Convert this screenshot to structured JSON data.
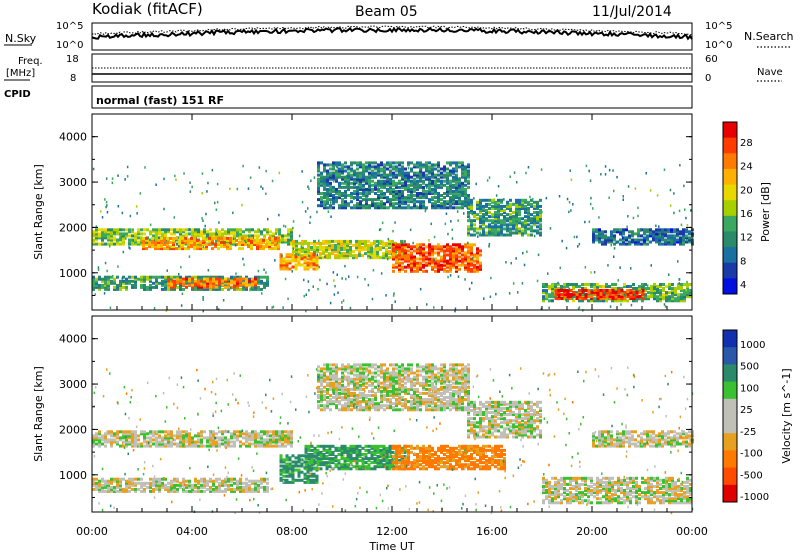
{
  "header": {
    "station": "Kodiak (fitACF)",
    "beam": "Beam 05",
    "date": "11/Jul/2014"
  },
  "noise_panel": {
    "left_label": "N.Sky",
    "right_label": "N.Search",
    "tick_top": "10^5",
    "tick_bottom": "10^0"
  },
  "freq_panel": {
    "left_label_1": "Freq.",
    "left_label_2": "[MHz]",
    "right_label": "Nave",
    "left_ticks": [
      "18",
      "8"
    ],
    "right_ticks": [
      "60",
      "0"
    ]
  },
  "cpid_panel": {
    "label": "CPID",
    "program": "normal (fast) 151 RF"
  },
  "power_colorbar": {
    "label": "Power [dB]",
    "ticks": [
      "28",
      "24",
      "20",
      "16",
      "12",
      "8",
      "4"
    ],
    "colors": [
      "#e60000",
      "#ff3b00",
      "#ff7a00",
      "#ffb000",
      "#e8d800",
      "#a8d000",
      "#3aa860",
      "#2a8a6a",
      "#1a70a0",
      "#1a3aa8",
      "#0010e0"
    ]
  },
  "velocity_colorbar": {
    "label": "Velocity [m s^-1]",
    "ticks": [
      "1000",
      "500",
      "100",
      "25",
      "-25",
      "-100",
      "-500",
      "-1000"
    ],
    "colors": [
      "#1030b0",
      "#2a58a8",
      "#2a8a6a",
      "#3ac030",
      "#c0c0b8",
      "#c0c0b8",
      "#e8a020",
      "#ff7800",
      "#ff4a00",
      "#e00000"
    ]
  },
  "x_axis": {
    "label": "Time UT",
    "ticks": [
      "00:00",
      "04:00",
      "08:00",
      "12:00",
      "16:00",
      "20:00",
      "00:00"
    ]
  },
  "chart_data": [
    {
      "type": "heatmap",
      "title": "Power",
      "ylabel": "Slant Range [km]",
      "xlabel": "Time UT",
      "y_ticks": [
        "1000",
        "2000",
        "3000",
        "4000"
      ],
      "ylim": [
        180,
        4500
      ],
      "xlim_hours": [
        0,
        24
      ],
      "color_scale": "Power [dB]",
      "range_db": [
        0,
        30
      ],
      "bands": [
        {
          "t0": 0.0,
          "t1": 8.0,
          "r0": 1600,
          "r1": 1950,
          "level": 14
        },
        {
          "t0": 2.0,
          "t1": 7.5,
          "r0": 1500,
          "r1": 1750,
          "level": 22
        },
        {
          "t0": 0.0,
          "t1": 7.0,
          "r0": 600,
          "r1": 900,
          "level": 10
        },
        {
          "t0": 3.0,
          "t1": 6.5,
          "r0": 650,
          "r1": 850,
          "level": 24
        },
        {
          "t0": 8.0,
          "t1": 12.5,
          "r0": 1300,
          "r1": 1700,
          "level": 16
        },
        {
          "t0": 7.5,
          "t1": 9.0,
          "r0": 1050,
          "r1": 1400,
          "level": 22
        },
        {
          "t0": 12.0,
          "t1": 15.5,
          "r0": 1000,
          "r1": 1600,
          "level": 26
        },
        {
          "t0": 9.0,
          "t1": 15.0,
          "r0": 2400,
          "r1": 3400,
          "level": 8
        },
        {
          "t0": 15.0,
          "t1": 18.0,
          "r0": 1800,
          "r1": 2600,
          "level": 10
        },
        {
          "t0": 18.0,
          "t1": 24.0,
          "r0": 350,
          "r1": 750,
          "level": 12
        },
        {
          "t0": 18.5,
          "t1": 22.0,
          "r0": 400,
          "r1": 600,
          "level": 28
        },
        {
          "t0": 20.0,
          "t1": 24.0,
          "r0": 1600,
          "r1": 1950,
          "level": 6
        }
      ]
    },
    {
      "type": "heatmap",
      "title": "Velocity",
      "ylabel": "Slant Range [km]",
      "xlabel": "Time UT",
      "y_ticks": [
        "1000",
        "2000",
        "3000",
        "4000"
      ],
      "ylim": [
        180,
        4500
      ],
      "xlim_hours": [
        0,
        24
      ],
      "color_scale": "Velocity [m s^-1]",
      "bands": [
        {
          "t0": 0.0,
          "t1": 8.0,
          "r0": 1600,
          "r1": 1950,
          "v": 0
        },
        {
          "t0": 0.0,
          "t1": 7.0,
          "r0": 600,
          "r1": 900,
          "v": 0
        },
        {
          "t0": 7.5,
          "t1": 9.0,
          "r0": 800,
          "r1": 1400,
          "v": 150
        },
        {
          "t0": 8.5,
          "t1": 12.5,
          "r0": 1100,
          "r1": 1600,
          "v": 120
        },
        {
          "t0": 12.0,
          "t1": 16.5,
          "r0": 1100,
          "r1": 1600,
          "v": -150
        },
        {
          "t0": 9.0,
          "t1": 15.0,
          "r0": 2400,
          "r1": 3400,
          "v": 0
        },
        {
          "t0": 15.0,
          "t1": 18.0,
          "r0": 1800,
          "r1": 2600,
          "v": 0
        },
        {
          "t0": 18.0,
          "t1": 24.0,
          "r0": 350,
          "r1": 900,
          "v": 0
        },
        {
          "t0": 20.0,
          "t1": 24.0,
          "r0": 1600,
          "r1": 1950,
          "v": 0
        }
      ]
    }
  ]
}
